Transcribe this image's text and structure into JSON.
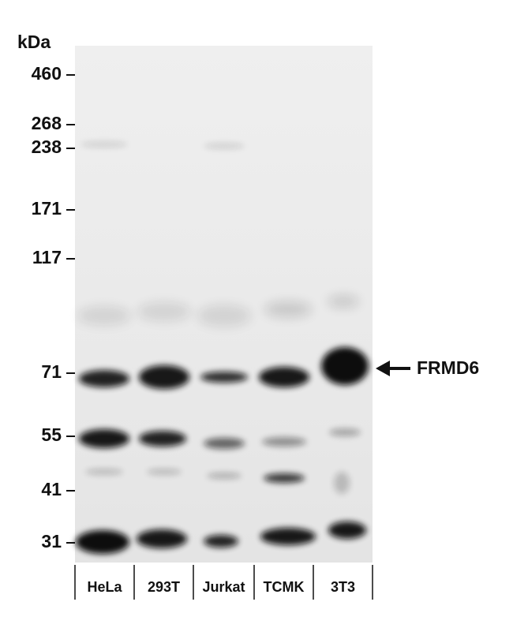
{
  "axis_label": "kDa",
  "markers": [
    "460",
    "268",
    "238",
    "171",
    "117",
    "71",
    "55",
    "41",
    "31"
  ],
  "lanes": [
    "HeLa",
    "293T",
    "Jurkat",
    "TCMK",
    "3T3"
  ],
  "target": "FRMD6"
}
